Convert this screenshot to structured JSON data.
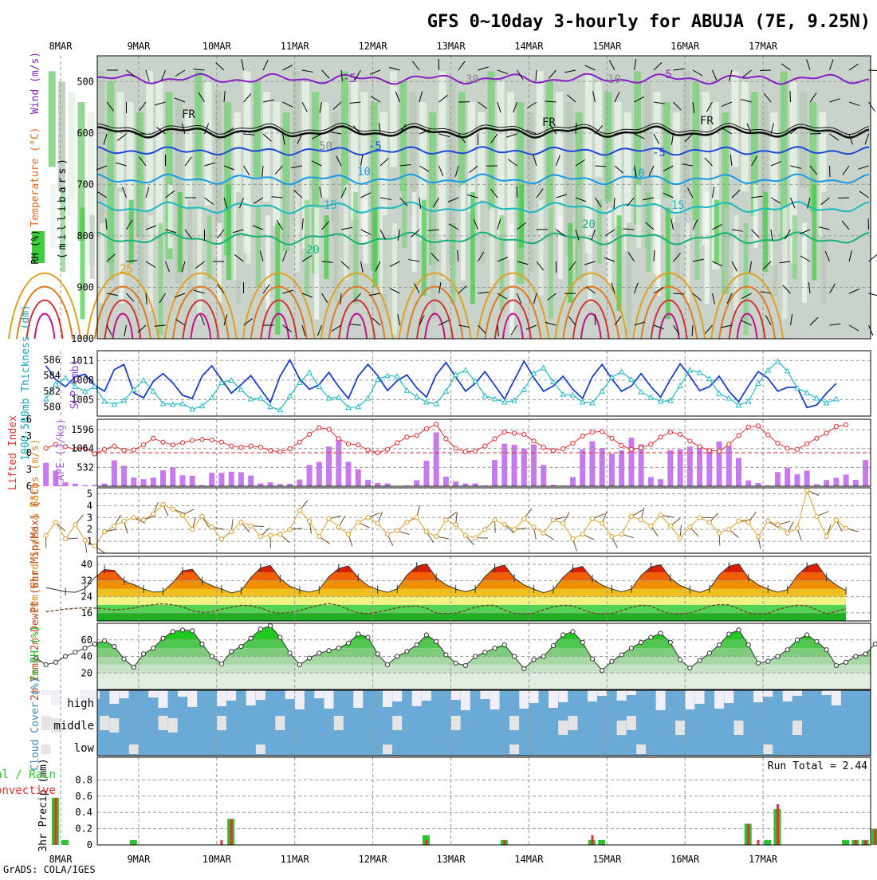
{
  "chart_data": {
    "type": "meteogram",
    "title": "GFS 0~10day 3-hourly for ABUJA (7E, 9.25N)",
    "credit": "GrADS: COLA/IGES",
    "dates": [
      "8MAR",
      "9MAR",
      "10MAR",
      "11MAR",
      "12MAR",
      "13MAR",
      "14MAR",
      "15MAR",
      "16MAR",
      "17MAR"
    ],
    "panels": [
      {
        "id": "upper-air",
        "ylabel": "(millibars)",
        "legend_labels": [
          "RH (%)",
          "Temperature (°C)",
          "Wind (m/s)"
        ],
        "yticks": [
          "500",
          "600",
          "700",
          "800",
          "900",
          "1000"
        ],
        "contour_labels": [
          "-5",
          "-5",
          "FR",
          "FR",
          "FR",
          "-5",
          "-5",
          "10",
          "10",
          "15",
          "15",
          "20",
          "20",
          "25",
          "30",
          "50",
          "10"
        ]
      },
      {
        "id": "thickness-slp",
        "ylabel_left": "1000-500mb Thickness (dm)",
        "ylabel_right": "SLP (mb)",
        "yticks_left": [
          "586",
          "584",
          "582",
          "580"
        ],
        "yticks_right": [
          "1011",
          "1008",
          "1005"
        ],
        "slp": [
          1010.2,
          1008.1,
          1007.0,
          1008.5,
          1008.9,
          1007.2,
          1006.3,
          1009.6,
          1010.4,
          1006.1,
          1005.3,
          1007.8,
          1009.0,
          1007.6,
          1005.7,
          1005.2,
          1008.6,
          1010.2,
          1008.1,
          1006.0,
          1007.3,
          1008.7,
          1006.6,
          1004.6,
          1008.6,
          1011.1,
          1008.2,
          1006.6,
          1007.3,
          1009.2,
          1007.0,
          1005.2,
          1008.6,
          1010.4,
          1008.7,
          1006.4,
          1007.9,
          1008.8,
          1006.8,
          1005.4,
          1008.8,
          1010.7,
          1008.5,
          1006.3,
          1007.5,
          1009.3,
          1007.2,
          1005.1,
          1008.0,
          1010.9,
          1008.4,
          1006.3,
          1007.1,
          1008.6,
          1006.6,
          1005.2,
          1008.5,
          1010.4,
          1008.2,
          1006.3,
          1007.1,
          1009.0,
          1007.0,
          1005.4,
          1008.1,
          1010.5,
          1008.6,
          1006.4,
          1007.0,
          1008.6,
          1006.3,
          1004.7,
          1007.1,
          1009.3,
          1008.3,
          1006.3,
          1006.9,
          1006.9,
          1003.8,
          1004.2,
          1006.0,
          1007.5
        ],
        "thickness": [
          581.0,
          582.9,
          583.7,
          582.6,
          582.0,
          582.6,
          580.7,
          580.3,
          580.8,
          582.2,
          583.4,
          582.0,
          580.4,
          580.3,
          580.4,
          579.7,
          580.1,
          581.2,
          583.1,
          583.4,
          582.2,
          581.0,
          581.1,
          580.0,
          579.6,
          581.4,
          583.1,
          584.4,
          582.6,
          581.1,
          581.2,
          579.9,
          580.0,
          581.1,
          583.5,
          584.0,
          583.9,
          582.1,
          581.3,
          580.6,
          580.4,
          582.0,
          584.1,
          584.7,
          583.3,
          581.4,
          581.0,
          580.6,
          580.8,
          582.2,
          584.3,
          585.0,
          583.2,
          581.6,
          581.5,
          580.6,
          580.5,
          582.0,
          583.8,
          584.5,
          583.5,
          581.9,
          581.2,
          580.7,
          580.8,
          582.7,
          584.7,
          584.4,
          583.6,
          581.7,
          581.1,
          580.2,
          580.7,
          583.0,
          584.7,
          585.8,
          584.6,
          582.4,
          581.8,
          581.1,
          580.5,
          581.0
        ]
      },
      {
        "id": "cape-li",
        "ylabel_left": "Lifted Index",
        "ylabel_right": "CAPE (J/kg)",
        "yticks_left": [
          "-6",
          "-3",
          "0",
          "3",
          "6"
        ],
        "yticks_right": [
          "1596",
          "1064",
          "532"
        ],
        "cape": [
          660,
          440,
          110,
          75,
          30,
          40,
          75,
          730,
          580,
          245,
          200,
          245,
          450,
          530,
          310,
          295,
          30,
          380,
          380,
          410,
          395,
          300,
          80,
          110,
          60,
          70,
          190,
          600,
          690,
          1120,
          1310,
          690,
          480,
          180,
          95,
          80,
          10,
          20,
          170,
          720,
          1520,
          270,
          140,
          80,
          80,
          20,
          740,
          1200,
          1170,
          1060,
          1180,
          600,
          40,
          20,
          260,
          1040,
          1270,
          1080,
          920,
          1010,
          1370,
          1180,
          260,
          200,
          1020,
          1040,
          1120,
          1120,
          1060,
          1260,
          1120,
          800,
          165,
          90,
          20,
          400,
          525,
          340,
          440,
          55,
          175,
          240,
          330,
          180,
          740
        ],
        "li": [
          -0.8,
          -1.5,
          -1.1,
          -0.6,
          -0.9,
          0.2,
          -0.6,
          -1.2,
          -0.4,
          -0.5,
          -1.4,
          -2.6,
          -1.9,
          -1.4,
          -1.8,
          -2.2,
          -2.4,
          -2.3,
          -1.9,
          -1.2,
          -1.0,
          -1.2,
          -1.0,
          -0.4,
          -0.2,
          -0.7,
          -1.9,
          -3.3,
          -4.5,
          -4.2,
          -2.5,
          -1.6,
          -1.4,
          -0.5,
          0.0,
          -0.6,
          -1.8,
          -2.8,
          -3.1,
          -4.3,
          -5.1,
          -2.5,
          -0.8,
          -0.2,
          -0.3,
          -1.2,
          -2.5,
          -3.7,
          -3.5,
          -3.3,
          -2.1,
          -1.0,
          -0.4,
          -0.7,
          -1.7,
          -3.0,
          -3.7,
          -3.8,
          -2.6,
          -1.3,
          -0.6,
          -0.9,
          -1.5,
          -2.8,
          -3.7,
          -3.3,
          -2.1,
          -1.1,
          -0.4,
          -0.3,
          -1.5,
          -3.1,
          -4.6,
          -4.8,
          -3.2,
          -1.7,
          -0.8,
          -0.6,
          -1.6,
          -2.6,
          -3.5,
          -4.7,
          -5.0
        ]
      },
      {
        "id": "wind10m",
        "ylabel": "10m Wind Speed & Barbs (m/s)",
        "yticks": [
          "5",
          "4",
          "3",
          "2",
          "1"
        ],
        "speed": [
          1.5,
          2.6,
          1.2,
          2.4,
          1.1,
          0.6,
          1.8,
          2.3,
          2.7,
          3.0,
          2.8,
          3.3,
          4.1,
          3.7,
          3.2,
          2.0,
          3.1,
          2.2,
          1.2,
          1.8,
          2.6,
          2.3,
          1.4,
          1.5,
          1.6,
          2.0,
          3.6,
          2.7,
          1.4,
          2.9,
          2.2,
          1.6,
          2.6,
          3.0,
          2.5,
          1.6,
          1.9,
          2.6,
          3.0,
          1.8,
          1.4,
          2.8,
          2.4,
          1.5,
          1.3,
          2.0,
          2.8,
          2.4,
          2.0,
          2.9,
          2.2,
          1.7,
          2.8,
          2.5,
          1.2,
          1.6,
          2.9,
          2.5,
          1.4,
          1.6,
          3.1,
          2.8,
          2.3,
          3.2,
          2.3,
          1.3,
          2.2,
          3.0,
          2.6,
          1.7,
          2.0,
          2.7,
          2.6,
          1.4,
          2.7,
          2.4,
          1.7,
          2.1,
          5.3,
          3.1,
          1.4,
          2.8,
          2.1
        ]
      },
      {
        "id": "temp2m",
        "ylabel": "2m Temp 2m DewPt (6hr Min/Max) (°C)",
        "yticks": [
          "40",
          "32",
          "24",
          "16"
        ],
        "temp": [
          28.5,
          27.5,
          26.5,
          26.2,
          28.0,
          33.4,
          37.5,
          37.0,
          31.8,
          30.0,
          27.8,
          26.3,
          26.5,
          31.0,
          36.8,
          37.6,
          31.8,
          29.5,
          27.8,
          25.9,
          27.0,
          33.5,
          38.3,
          39.5,
          33.0,
          29.2,
          27.3,
          26.3,
          27.5,
          34.0,
          38.0,
          39.3,
          33.5,
          29.5,
          27.5,
          26.2,
          27.9,
          34.7,
          39.1,
          40.2,
          33.5,
          29.9,
          27.8,
          26.5,
          27.8,
          34.0,
          38.4,
          39.6,
          33.3,
          29.8,
          27.8,
          26.0,
          27.5,
          33.6,
          37.9,
          39.0,
          33.0,
          29.7,
          27.8,
          26.4,
          27.8,
          34.5,
          38.8,
          39.8,
          33.3,
          29.6,
          27.6,
          26.2,
          27.9,
          34.8,
          39.1,
          40.3,
          33.4,
          29.9,
          27.8,
          26.3,
          27.5,
          34.5,
          39.0,
          40.5,
          33.6,
          29.8,
          27.0
        ],
        "dewpt": [
          16.5,
          17.2,
          17.9,
          18.2,
          18.5,
          18.4,
          18.0,
          17.5,
          17.8,
          18.4,
          19.5,
          20.1,
          20.5,
          20.0,
          19.0,
          17.0,
          16.2,
          16.5,
          17.8,
          18.8,
          19.7,
          19.6,
          18.4,
          16.5,
          15.8,
          16.2,
          17.1,
          18.6,
          19.8,
          20.6,
          19.7,
          17.6,
          15.9,
          15.6,
          16.3,
          17.5,
          18.5,
          19.2,
          19.4,
          18.3,
          15.9,
          15.5,
          15.9,
          17.2,
          18.8,
          19.7,
          19.7,
          17.3,
          15.8,
          15.3,
          15.8,
          17.5,
          19.0,
          19.8,
          19.5,
          17.6,
          15.9,
          15.4,
          15.7,
          17.1,
          18.8,
          19.8,
          19.4,
          17.0,
          15.6,
          15.4,
          15.9,
          17.4,
          19.3,
          20.1,
          19.9,
          18.1,
          15.9,
          15.3,
          15.7,
          17.6,
          18.9,
          19.8,
          19.5,
          17.5,
          15.5,
          16.8,
          18.2
        ]
      },
      {
        "id": "rh2m",
        "ylabel": "2m RH (%)",
        "yticks": [
          "60",
          "40",
          "20"
        ],
        "rh": [
          38,
          30,
          33,
          40,
          45,
          50,
          55,
          59,
          52,
          37,
          27,
          43,
          50,
          62,
          70,
          72,
          71,
          55,
          40,
          31,
          46,
          52,
          62,
          73,
          77,
          63,
          44,
          30,
          38,
          44,
          47,
          50,
          56,
          67,
          63,
          43,
          30,
          40,
          46,
          54,
          66,
          58,
          42,
          32,
          29,
          40,
          45,
          50,
          54,
          40,
          25,
          36,
          40,
          53,
          66,
          70,
          57,
          37,
          23,
          34,
          42,
          50,
          57,
          63,
          68,
          57,
          36,
          26,
          35,
          44,
          54,
          67,
          72,
          54,
          32,
          34,
          40,
          48,
          60,
          66,
          58,
          48,
          29,
          33,
          40,
          43,
          55,
          60,
          72
        ]
      },
      {
        "id": "cloud",
        "ylabel": "Cloud Cover (%)",
        "rows": [
          "high",
          "middle",
          "low"
        ]
      },
      {
        "id": "precip",
        "ylabel_left": "Total / Rain Convective",
        "ylabel_right": "3hr Precip (mm)",
        "yticks": [
          "0.8",
          "0.6",
          "0.4",
          "0.2",
          "0"
        ],
        "run_total_label": "Run Total = 2.44",
        "total": [
          0,
          0.58,
          0.06,
          0,
          0,
          0,
          0,
          0,
          0,
          0.06,
          0,
          0,
          0,
          0,
          0,
          0,
          0,
          0,
          0,
          0.32,
          0,
          0,
          0,
          0,
          0,
          0,
          0,
          0,
          0,
          0,
          0,
          0,
          0,
          0,
          0,
          0,
          0,
          0,
          0,
          0.12,
          0,
          0,
          0,
          0,
          0,
          0,
          0,
          0.06,
          0,
          0,
          0,
          0,
          0,
          0,
          0,
          0,
          0.06,
          0.06,
          0,
          0,
          0,
          0,
          0,
          0,
          0,
          0,
          0,
          0,
          0,
          0,
          0,
          0,
          0.26,
          0,
          0.06,
          0.44,
          0,
          0,
          0,
          0,
          0,
          0,
          0.06,
          0.06,
          0.06,
          0.2
        ],
        "convective": [
          0,
          0.58,
          0,
          0,
          0,
          0,
          0,
          0,
          0,
          0,
          0,
          0,
          0,
          0,
          0,
          0,
          0,
          0,
          0.06,
          0.32,
          0,
          0,
          0,
          0,
          0,
          0,
          0,
          0,
          0,
          0,
          0,
          0,
          0,
          0,
          0,
          0,
          0,
          0,
          0,
          0.06,
          0,
          0,
          0,
          0,
          0,
          0,
          0,
          0.06,
          0,
          0,
          0,
          0,
          0,
          0,
          0,
          0,
          0.12,
          0,
          0,
          0,
          0,
          0,
          0,
          0,
          0,
          0,
          0,
          0,
          0,
          0,
          0,
          0,
          0.26,
          0.06,
          0,
          0.5,
          0,
          0,
          0,
          0,
          0,
          0,
          0,
          0.06,
          0.06,
          0.2
        ]
      }
    ]
  }
}
